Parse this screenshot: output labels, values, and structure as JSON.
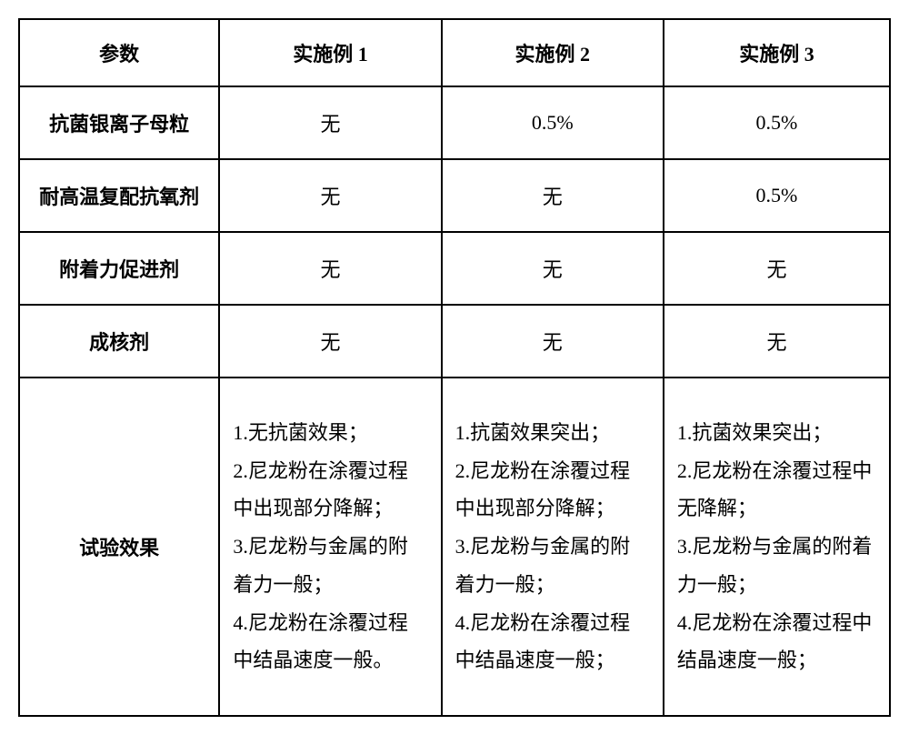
{
  "table": {
    "border_color": "#000000",
    "background_color": "#ffffff",
    "text_color": "#000000",
    "font_family": "SimSun",
    "header_fontsize": 22,
    "cell_fontsize": 22,
    "line_height": 1.9,
    "column_widths_pct": [
      23,
      25.5,
      25.5,
      26
    ],
    "header": {
      "c0": "参数",
      "c1": "实施例 1",
      "c2": "实施例 2",
      "c3": "实施例 3"
    },
    "rows": [
      {
        "param": "抗菌银离子母粒",
        "v1": "无",
        "v2": "0.5%",
        "v3": "0.5%"
      },
      {
        "param": "耐高温复配抗氧剂",
        "v1": "无",
        "v2": "无",
        "v3": "0.5%"
      },
      {
        "param": "附着力促进剂",
        "v1": "无",
        "v2": "无",
        "v3": "无"
      },
      {
        "param": "成核剂",
        "v1": "无",
        "v2": "无",
        "v3": "无"
      }
    ],
    "effect_row": {
      "param": "试验效果",
      "col1": [
        "1.无抗菌效果；",
        "2.尼龙粉在涂覆过程中出现部分降解；",
        "3.尼龙粉与金属的附着力一般；",
        "4.尼龙粉在涂覆过程中结晶速度一般。"
      ],
      "col2": [
        "1.抗菌效果突出；",
        "2.尼龙粉在涂覆过程中出现部分降解；",
        "3.尼龙粉与金属的附着力一般；",
        "4.尼龙粉在涂覆过程中结晶速度一般；"
      ],
      "col3": [
        "1.抗菌效果突出；",
        "2.尼龙粉在涂覆过程中无降解；",
        "3.尼龙粉与金属的附着力一般；",
        "4.尼龙粉在涂覆过程中结晶速度一般；"
      ]
    }
  }
}
